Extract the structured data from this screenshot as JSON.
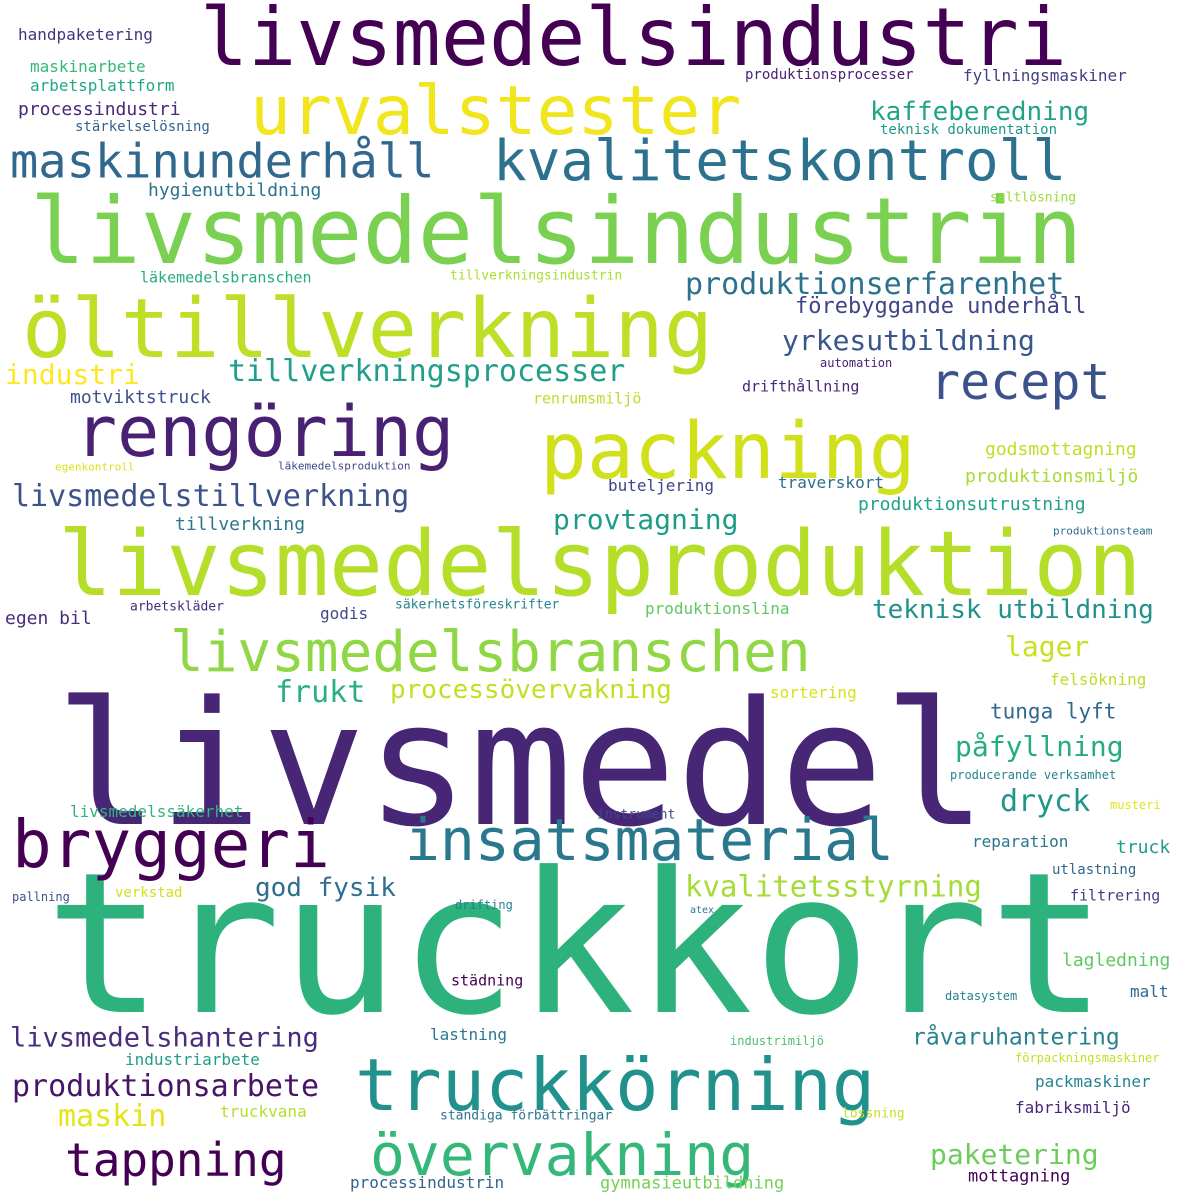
{
  "words": [
    {
      "text": "livsmedel",
      "color": "#472676"
    },
    {
      "text": "truckkort",
      "color": "#2db27d"
    },
    {
      "text": "livsmedelsindustrin",
      "color": "#7ad151"
    },
    {
      "text": "livsmedelsproduktion",
      "color": "#b5de2b"
    },
    {
      "text": "livsmedelsindustri",
      "color": "#440154"
    },
    {
      "text": "öltillverkning",
      "color": "#bddf26"
    },
    {
      "text": "urvalstester",
      "color": "#f1e51d"
    },
    {
      "text": "packning",
      "color": "#d0e11c"
    },
    {
      "text": "rengöring",
      "color": "#482173"
    },
    {
      "text": "truckkörning",
      "color": "#21918c"
    },
    {
      "text": "kvalitetskontroll",
      "color": "#2c728e"
    },
    {
      "text": "bryggeri",
      "color": "#440154"
    },
    {
      "text": "insatsmaterial",
      "color": "#2a788e"
    },
    {
      "text": "livsmedelsbranschen",
      "color": "#8fd744"
    },
    {
      "text": "övervakning",
      "color": "#35b779"
    },
    {
      "text": "recept",
      "color": "#3b528b"
    },
    {
      "text": "maskinunderhåll",
      "color": "#31688e"
    },
    {
      "text": "tappning",
      "color": "#440154"
    },
    {
      "text": "produktionsarbete",
      "color": "#481467"
    },
    {
      "text": "livsmedelstillverkning",
      "color": "#3b528b"
    },
    {
      "text": "tillverkningsprocesser",
      "color": "#1f9e89"
    },
    {
      "text": "produktionserfarenhet",
      "color": "#2c728e"
    },
    {
      "text": "yrkesutbildning",
      "color": "#39568c"
    },
    {
      "text": "kvalitetsstyrning",
      "color": "#a5db36"
    },
    {
      "text": "livsmedelshantering",
      "color": "#472d7b"
    },
    {
      "text": "kaffeberedning",
      "color": "#20a486"
    },
    {
      "text": "industri",
      "color": "#fde725"
    },
    {
      "text": "paketering",
      "color": "#6ccd5a"
    },
    {
      "text": "provtagning",
      "color": "#1e9c89"
    },
    {
      "text": "god fysik",
      "color": "#2e6e8e"
    },
    {
      "text": "påfyllning",
      "color": "#25ac82"
    },
    {
      "text": "processövervakning",
      "color": "#c2df23"
    },
    {
      "text": "maskin",
      "color": "#e5e419"
    },
    {
      "text": "frukt",
      "color": "#2ab07f"
    },
    {
      "text": "dryck",
      "color": "#1f968b"
    },
    {
      "text": "teknisk utbildning",
      "color": "#21918c"
    },
    {
      "text": "förebyggande underhåll",
      "color": "#414487"
    },
    {
      "text": "lager",
      "color": "#c8e020"
    },
    {
      "text": "råvaruhantering",
      "color": "#26828e"
    },
    {
      "text": "tunga lyft",
      "color": "#31688e"
    },
    {
      "text": "hygienutbildning",
      "color": "#2c728e"
    },
    {
      "text": "tillverkning",
      "color": "#2a788e"
    },
    {
      "text": "motviktstruck",
      "color": "#3b528b"
    },
    {
      "text": "godsmottagning",
      "color": "#bddf26"
    },
    {
      "text": "produktionsutrustning",
      "color": "#20a386"
    },
    {
      "text": "produktionsmiljö",
      "color": "#a8db34"
    },
    {
      "text": "processindustri",
      "color": "#482878"
    },
    {
      "text": "fyllningsmaskiner",
      "color": "#433e85"
    },
    {
      "text": "handpaketering",
      "color": "#46337f"
    },
    {
      "text": "maskinarbete",
      "color": "#35b779"
    },
    {
      "text": "arbetsplattform",
      "color": "#22a785"
    },
    {
      "text": "produktionsprocesser",
      "color": "#481f70"
    },
    {
      "text": "stärkelselösning",
      "color": "#33638d"
    },
    {
      "text": "teknisk dokumentation",
      "color": "#1f968b"
    },
    {
      "text": "saltlösning",
      "color": "#9fda3a"
    },
    {
      "text": "läkemedelsbranschen",
      "color": "#25ab82"
    },
    {
      "text": "tillverkningsindustrin",
      "color": "#addc30"
    },
    {
      "text": "automation",
      "color": "#481f70"
    },
    {
      "text": "drifthållning",
      "color": "#482878"
    },
    {
      "text": "renrumsmiljö",
      "color": "#b8de29"
    },
    {
      "text": "egenkontroll",
      "color": "#d8e219"
    },
    {
      "text": "läkemedelsproduktion",
      "color": "#404688"
    },
    {
      "text": "buteljering",
      "color": "#414487"
    },
    {
      "text": "traverskort",
      "color": "#2e6d8e"
    },
    {
      "text": "produktionsteam",
      "color": "#2e6e8e"
    },
    {
      "text": "egen bil",
      "color": "#472d7b"
    },
    {
      "text": "arbetskläder",
      "color": "#472c7a"
    },
    {
      "text": "godis",
      "color": "#3e4a89"
    },
    {
      "text": "säkerhetsföreskrifter",
      "color": "#25848e"
    },
    {
      "text": "produktionslina",
      "color": "#5ec962"
    },
    {
      "text": "sortering",
      "color": "#d5e21a"
    },
    {
      "text": "felsökning",
      "color": "#bade28"
    },
    {
      "text": "producerande verksamhet",
      "color": "#25848e"
    },
    {
      "text": "livsmedelssäkerhet",
      "color": "#31b57b"
    },
    {
      "text": "instrument",
      "color": "#3e4a89"
    },
    {
      "text": "reparation",
      "color": "#2a768e"
    },
    {
      "text": "truck",
      "color": "#1e9d89"
    },
    {
      "text": "musteri",
      "color": "#e2e418"
    },
    {
      "text": "utlastning",
      "color": "#31688e"
    },
    {
      "text": "pallning",
      "color": "#3b528b"
    },
    {
      "text": "verkstad",
      "color": "#d0e11c"
    },
    {
      "text": "drifting",
      "color": "#287d8e"
    },
    {
      "text": "atex",
      "color": "#2c738e"
    },
    {
      "text": "filtrering",
      "color": "#433e85"
    },
    {
      "text": "lagledning",
      "color": "#5ec962"
    },
    {
      "text": "städning",
      "color": "#440154"
    },
    {
      "text": "malt",
      "color": "#31688e"
    },
    {
      "text": "datasystem",
      "color": "#277f8e"
    },
    {
      "text": "lastning",
      "color": "#2a788e"
    },
    {
      "text": "industrimiljö",
      "color": "#4ac16d"
    },
    {
      "text": "industriarbete",
      "color": "#1f9e89"
    },
    {
      "text": "förpackningsmaskiner",
      "color": "#c0df25"
    },
    {
      "text": "packmaskiner",
      "color": "#26828e"
    },
    {
      "text": "truckvana",
      "color": "#b5de2b"
    },
    {
      "text": "ständiga förbättringar",
      "color": "#2b748e"
    },
    {
      "text": "lossning",
      "color": "#c2df23"
    },
    {
      "text": "fabriksmiljö",
      "color": "#482576"
    },
    {
      "text": "mottagning",
      "color": "#440154"
    },
    {
      "text": "processindustrin",
      "color": "#33638d"
    },
    {
      "text": "gymnasieutbildning",
      "color": "#75d054"
    }
  ]
}
